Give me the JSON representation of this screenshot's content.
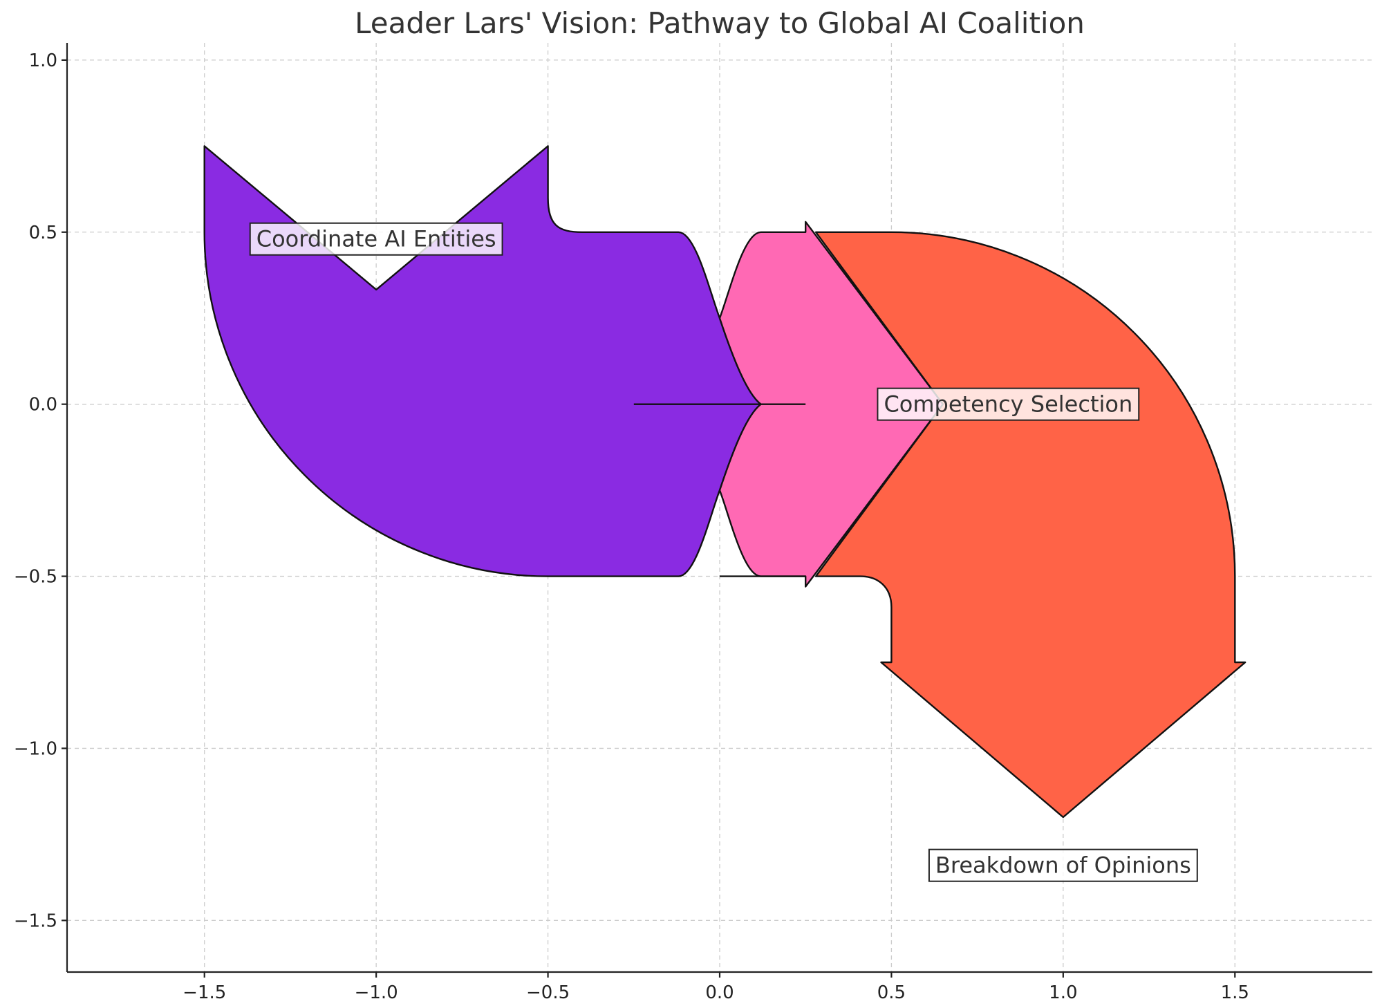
{
  "title": "Leader Lars' Vision: Pathway to Global AI Coalition",
  "chart_data": {
    "type": "sankey",
    "xlim": [
      -1.9,
      1.9
    ],
    "ylim": [
      -1.65,
      1.05
    ],
    "grid": true,
    "xticks": [
      -1.5,
      -1.0,
      -0.5,
      0.0,
      0.5,
      1.0,
      1.5
    ],
    "yticks": [
      -1.5,
      -1.0,
      -0.5,
      0.0,
      0.5,
      1.0
    ],
    "xtick_labels": [
      "−1.5",
      "−1.0",
      "−0.5",
      "0.0",
      "0.5",
      "1.0",
      "1.5"
    ],
    "ytick_labels": [
      "−1.5",
      "−1.0",
      "−0.5",
      "0.0",
      "0.5",
      "1.0"
    ],
    "diagrams": [
      {
        "label": "Coordinate AI Entities",
        "color": "#8A2BE2",
        "flows": [
          1,
          -1
        ],
        "orientations": [
          1,
          0
        ],
        "label_pos": [
          -1.0,
          0.48
        ]
      },
      {
        "label": "Competency Selection",
        "color": "#FF69B4",
        "flows": [
          1,
          -1
        ],
        "orientations": [
          0,
          0
        ],
        "label_pos": [
          0.84,
          0.0
        ]
      },
      {
        "label": "Breakdown of Opinions",
        "color": "#FF6347",
        "flows": [
          1,
          -1
        ],
        "orientations": [
          0,
          -1
        ],
        "label_pos": [
          1.0,
          -1.34
        ]
      }
    ]
  }
}
